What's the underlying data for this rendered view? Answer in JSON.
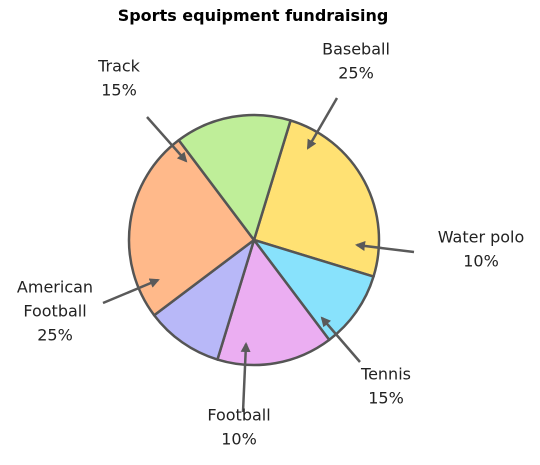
{
  "chart_data": {
    "type": "pie",
    "title": "Sports equipment fundraising",
    "slices": [
      {
        "label": [
          "Baseball"
        ],
        "pct_text": "25%",
        "value": 25,
        "color": "#ffe173"
      },
      {
        "label": [
          "Water polo"
        ],
        "pct_text": "10%",
        "value": 10,
        "color": "#88e2fc"
      },
      {
        "label": [
          "Tennis"
        ],
        "pct_text": "15%",
        "value": 15,
        "color": "#ebaef2"
      },
      {
        "label": [
          "Football"
        ],
        "pct_text": "10%",
        "value": 10,
        "color": "#b8b8f8"
      },
      {
        "label": [
          "American",
          "Football"
        ],
        "pct_text": "25%",
        "value": 25,
        "color": "#ffb98a"
      },
      {
        "label": [
          "Track"
        ],
        "pct_text": "15%",
        "value": 15,
        "color": "#bfee99"
      }
    ],
    "legend": "none"
  }
}
